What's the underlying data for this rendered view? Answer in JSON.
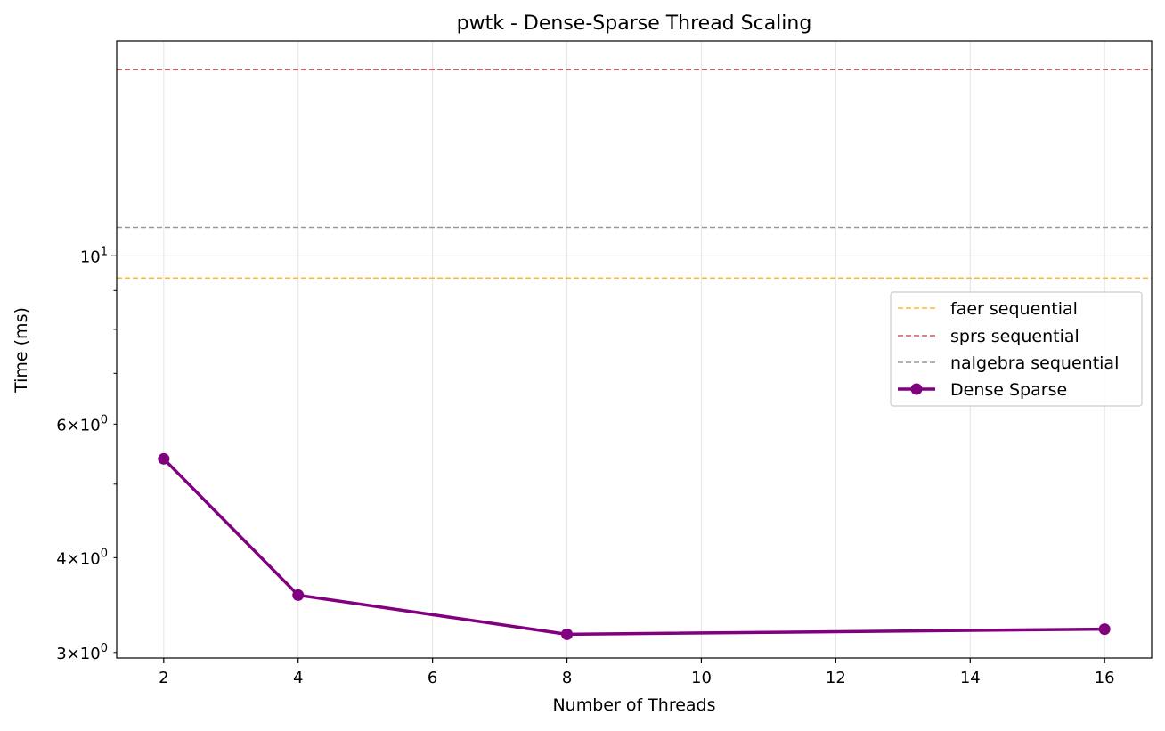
{
  "chart_data": {
    "type": "line",
    "title": "pwtk - Dense-Sparse Thread Scaling",
    "xlabel": "Number of Threads",
    "ylabel": "Time (ms)",
    "xlim": [
      1.3,
      16.7
    ],
    "ylim": [
      2.95,
      19.2
    ],
    "yscale": "log",
    "grid": true,
    "legend_position": "center-right",
    "x_ticks": [
      2,
      4,
      6,
      8,
      10,
      12,
      14,
      16
    ],
    "y_ticks": [
      {
        "value": 3,
        "base": "3",
        "times": "×",
        "exp": "10",
        "sup": "0"
      },
      {
        "value": 4,
        "base": "4",
        "times": "×",
        "exp": "10",
        "sup": "0"
      },
      {
        "value": 6,
        "base": "6",
        "times": "×",
        "exp": "10",
        "sup": "0"
      },
      {
        "value": 10,
        "base": "",
        "times": "",
        "exp": "10",
        "sup": "1"
      }
    ],
    "y_minor_ticks": [
      3,
      4,
      5,
      6,
      7,
      8,
      9
    ],
    "series": [
      {
        "name": "Dense Sparse",
        "style": "line-marker",
        "color": "#800080",
        "x": [
          2,
          4,
          8,
          16
        ],
        "values": [
          5.4,
          3.57,
          3.17,
          3.22
        ]
      }
    ],
    "reference_lines": [
      {
        "name": "faer sequential",
        "value": 9.35,
        "color": "#ffb732"
      },
      {
        "name": "sprs sequential",
        "value": 17.6,
        "color": "#cd5c5c"
      },
      {
        "name": "nalgebra sequential",
        "value": 10.9,
        "color": "#999999"
      }
    ]
  }
}
